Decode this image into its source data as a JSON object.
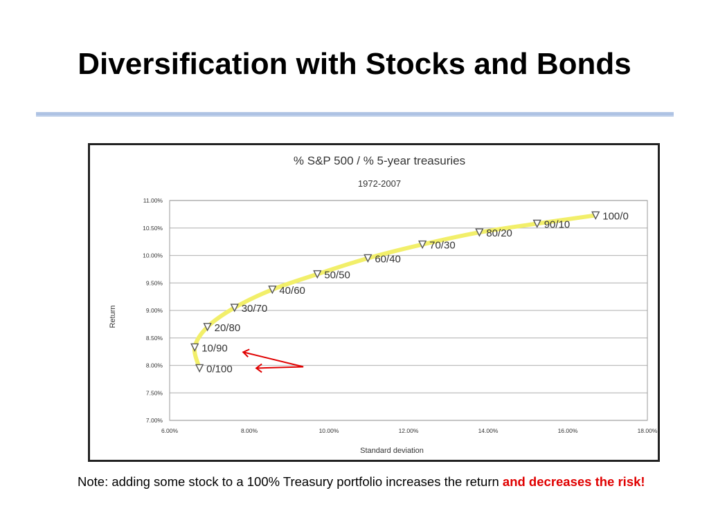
{
  "slide": {
    "title": "Diversification with Stocks and Bonds",
    "note_plain": "Note: adding some stock to a 100% Treasury portfolio increases the return",
    "note_emphasis": "and decreases the risk!",
    "emphasis_color": "#e00000"
  },
  "chart_data": {
    "type": "line",
    "title": "% S&P 500 / % 5-year treasuries",
    "subtitle": "1972-2007",
    "xlabel": "Standard deviation",
    "ylabel": "Return",
    "xlim": [
      6.0,
      18.0
    ],
    "ylim": [
      7.0,
      11.0
    ],
    "x_ticks": [
      6.0,
      8.0,
      10.0,
      12.0,
      14.0,
      16.0,
      18.0
    ],
    "x_tick_labels": [
      "6.00%",
      "8.00%",
      "10.00%",
      "12.00%",
      "14.00%",
      "16.00%",
      "18.00%"
    ],
    "y_ticks": [
      7.0,
      7.5,
      8.0,
      8.5,
      9.0,
      9.5,
      10.0,
      10.5,
      11.0
    ],
    "y_tick_labels": [
      "7.00%",
      "7.50%",
      "8.00%",
      "8.50%",
      "9.00%",
      "9.50%",
      "10.00%",
      "10.50%",
      "11.00%"
    ],
    "grid": true,
    "marker": "down-triangle",
    "line_color": "#f2ef6a",
    "marker_color": "#555555",
    "points": [
      {
        "label": "0/100",
        "x": 6.75,
        "y": 7.95
      },
      {
        "label": "10/90",
        "x": 6.63,
        "y": 8.33
      },
      {
        "label": "20/80",
        "x": 6.95,
        "y": 8.7
      },
      {
        "label": "30/70",
        "x": 7.63,
        "y": 9.05
      },
      {
        "label": "40/60",
        "x": 8.58,
        "y": 9.38
      },
      {
        "label": "50/50",
        "x": 9.71,
        "y": 9.66
      },
      {
        "label": "60/40",
        "x": 10.98,
        "y": 9.95
      },
      {
        "label": "70/30",
        "x": 12.35,
        "y": 10.2
      },
      {
        "label": "80/20",
        "x": 13.78,
        "y": 10.42
      },
      {
        "label": "90/10",
        "x": 15.23,
        "y": 10.58
      },
      {
        "label": "100/0",
        "x": 16.7,
        "y": 10.73
      }
    ],
    "annotation_color": "#e00000"
  }
}
